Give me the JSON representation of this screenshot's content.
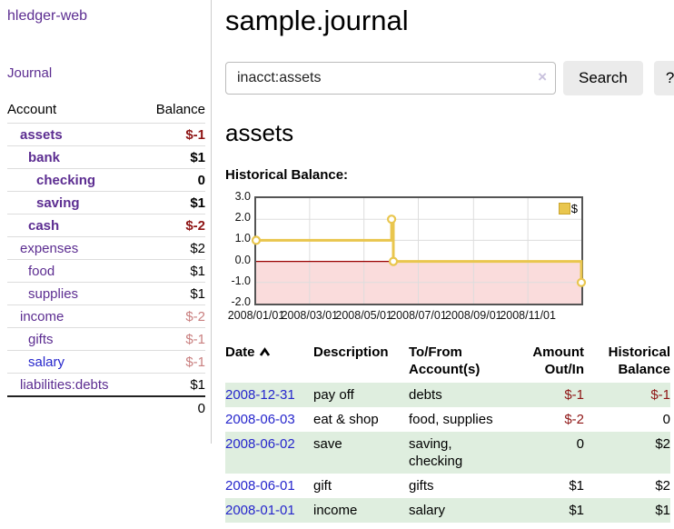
{
  "app_title": "hledger-web",
  "sidebar": {
    "journal_link": "Journal",
    "accounts": {
      "header_account": "Account",
      "header_balance": "Balance",
      "rows": [
        {
          "name": "assets",
          "balance": "$-1",
          "level": 1,
          "bold": true,
          "name_color": "purple",
          "balance_color": "negative-strong"
        },
        {
          "name": "bank",
          "balance": "$1",
          "level": 2,
          "bold": true,
          "name_color": "purple",
          "balance_color": "normal"
        },
        {
          "name": "checking",
          "balance": "0",
          "level": 3,
          "bold": true,
          "name_color": "purple",
          "balance_color": "normal"
        },
        {
          "name": "saving",
          "balance": "$1",
          "level": 3,
          "bold": true,
          "name_color": "purple",
          "balance_color": "normal"
        },
        {
          "name": "cash",
          "balance": "$-2",
          "level": 2,
          "bold": true,
          "name_color": "purple",
          "balance_color": "negative-strong"
        },
        {
          "name": "expenses",
          "balance": "$2",
          "level": 1,
          "bold": false,
          "name_color": "purple",
          "balance_color": "normal"
        },
        {
          "name": "food",
          "balance": "$1",
          "level": 2,
          "bold": false,
          "name_color": "purple",
          "balance_color": "normal"
        },
        {
          "name": "supplies",
          "balance": "$1",
          "level": 2,
          "bold": false,
          "name_color": "purple",
          "balance_color": "normal"
        },
        {
          "name": "income",
          "balance": "$-2",
          "level": 1,
          "bold": false,
          "name_color": "purple",
          "balance_color": "negative-soft"
        },
        {
          "name": "gifts",
          "balance": "$-1",
          "level": 2,
          "bold": false,
          "name_color": "purple",
          "balance_color": "negative-soft"
        },
        {
          "name": "salary",
          "balance": "$-1",
          "level": 2,
          "bold": false,
          "name_color": "blue",
          "balance_color": "negative-soft"
        },
        {
          "name": "liabilities:debts",
          "balance": "$1",
          "level": 1,
          "bold": false,
          "name_color": "purple",
          "balance_color": "normal"
        }
      ],
      "total": "0"
    }
  },
  "main": {
    "title": "sample.journal",
    "search": {
      "value": "inacct:assets",
      "clear_icon": "×",
      "button_label": "Search",
      "help_label": "?"
    },
    "account_heading": "assets",
    "chart_label": "Historical Balance:"
  },
  "chart_data": {
    "type": "line",
    "style": "step-after",
    "title": "Historical Balance",
    "legend": [
      {
        "label": "$",
        "color": "#E9C64E"
      }
    ],
    "legend_position": "top-right",
    "grid": true,
    "ylim": [
      -2,
      3
    ],
    "y_ticks": [
      "3.0",
      "2.0",
      "1.0",
      "0.0",
      "-1.0",
      "-2.0"
    ],
    "y_gridlines": [
      2,
      1,
      -1
    ],
    "x_range": [
      "2008-01-01",
      "2008-12-31"
    ],
    "x_ticks": [
      {
        "label": "2008/01/01",
        "date": "2008-01-01"
      },
      {
        "label": "2008/03/01",
        "date": "2008-03-01"
      },
      {
        "label": "2008/05/01",
        "date": "2008-05-01"
      },
      {
        "label": "2008/07/01",
        "date": "2008-07-01"
      },
      {
        "label": "2008/09/01",
        "date": "2008-09-01"
      },
      {
        "label": "2008/11/01",
        "date": "2008-11-01"
      }
    ],
    "series": [
      {
        "name": "$",
        "points": [
          [
            "2008-01-01",
            1
          ],
          [
            "2008-06-01",
            2
          ],
          [
            "2008-06-03",
            0
          ],
          [
            "2008-12-31",
            -1
          ]
        ]
      }
    ],
    "line_color": "#E9C64E",
    "marker_fill": "#FFFFFF",
    "negative_region_fill": "#FADCDC",
    "zero_line_color": "#990000",
    "gridline_color": "#DDDDDD"
  },
  "register": {
    "headers": {
      "date": "Date",
      "description": "Description",
      "tofrom": "To/From Account(s)",
      "amount": "Amount Out/In",
      "balance": "Historical Balance"
    },
    "rows": [
      {
        "date": "2008-12-31",
        "description": "pay off",
        "tofrom": "debts",
        "amount": "$-1",
        "balance": "$-1",
        "amount_neg": true,
        "balance_neg": true,
        "shaded": true
      },
      {
        "date": "2008-06-03",
        "description": "eat & shop",
        "tofrom": "food, supplies",
        "amount": "$-2",
        "balance": "0",
        "amount_neg": true,
        "balance_neg": false,
        "shaded": false
      },
      {
        "date": "2008-06-02",
        "description": "save",
        "tofrom": "saving,\nchecking",
        "amount": "0",
        "balance": "$2",
        "amount_neg": false,
        "balance_neg": false,
        "shaded": true
      },
      {
        "date": "2008-06-01",
        "description": "gift",
        "tofrom": "gifts",
        "amount": "$1",
        "balance": "$2",
        "amount_neg": false,
        "balance_neg": false,
        "shaded": false
      },
      {
        "date": "2008-01-01",
        "description": "income",
        "tofrom": "salary",
        "amount": "$1",
        "balance": "$1",
        "amount_neg": false,
        "balance_neg": false,
        "shaded": true
      }
    ]
  },
  "colors": {
    "purple": "#5C2D91",
    "blue": "#2626CC",
    "negative_strong": "#8E1515",
    "negative_soft": "#C97F7F",
    "row_green": "#DFEEDF",
    "gold": "#E9C64E"
  }
}
